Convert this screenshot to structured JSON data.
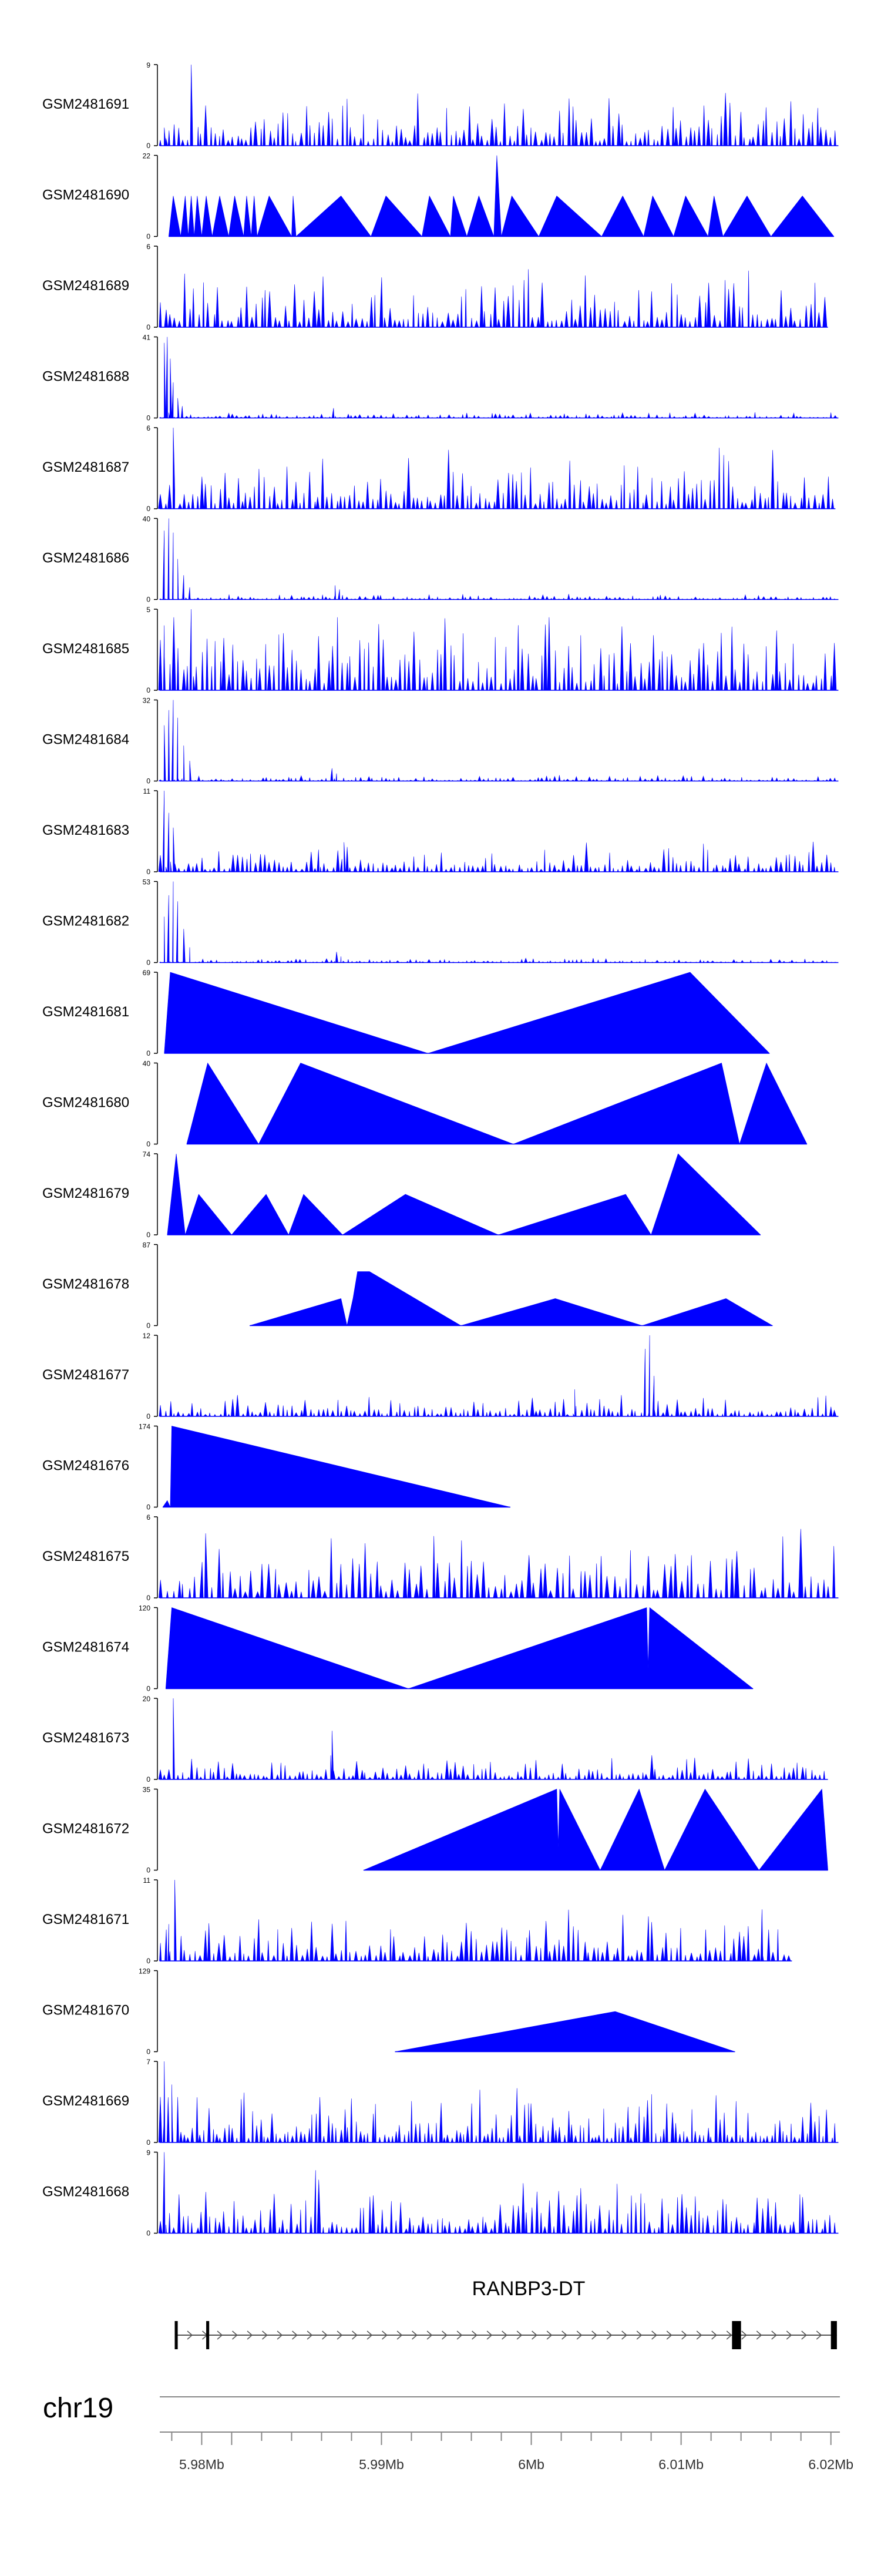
{
  "colors": {
    "track_fill": "#0000ff",
    "axis": "#000000",
    "text": "#000000"
  },
  "chart_data": {
    "type": "area",
    "xlim": [
      5975200,
      6020600
    ],
    "tracks": [
      {
        "name": "GSM2481691",
        "ymax": 9,
        "baseline": 0,
        "style": "spiky",
        "peaks": [
          [
            5975500,
            2
          ],
          [
            5977300,
            9
          ]
        ],
        "range": [
          5975200,
          6020500
        ],
        "n": 150,
        "seed": 11,
        "amp": 0.35
      },
      {
        "name": "GSM2481690",
        "ymax": 22,
        "baseline": 0,
        "style": "tri",
        "points": [
          [
            5975800,
            0
          ],
          [
            5976100,
            11
          ],
          [
            5976600,
            0
          ],
          [
            5976900,
            11
          ],
          [
            5977100,
            0
          ],
          [
            5977300,
            11
          ],
          [
            5977500,
            0
          ],
          [
            5977700,
            11
          ],
          [
            5978000,
            0
          ],
          [
            5978300,
            11
          ],
          [
            5978700,
            0
          ],
          [
            5979200,
            11
          ],
          [
            5979800,
            0
          ],
          [
            5980200,
            11
          ],
          [
            5980800,
            0
          ],
          [
            5981000,
            11
          ],
          [
            5981300,
            0
          ],
          [
            5981500,
            11
          ],
          [
            5981700,
            0
          ],
          [
            5982500,
            11
          ],
          [
            5984000,
            0
          ],
          [
            5984100,
            11
          ],
          [
            5984300,
            0
          ],
          [
            5987300,
            11
          ],
          [
            5989300,
            0
          ],
          [
            5990300,
            11
          ],
          [
            5992700,
            0
          ],
          [
            5993200,
            11
          ],
          [
            5994600,
            0
          ],
          [
            5994800,
            11
          ],
          [
            5995700,
            0
          ],
          [
            5996500,
            11
          ],
          [
            5997500,
            0
          ],
          [
            5997700,
            22
          ],
          [
            5998000,
            0
          ],
          [
            5998700,
            11
          ],
          [
            6000500,
            0
          ],
          [
            6001700,
            11
          ],
          [
            6004700,
            0
          ],
          [
            6006100,
            11
          ],
          [
            6007500,
            0
          ],
          [
            6008100,
            11
          ],
          [
            6009500,
            0
          ],
          [
            6010300,
            11
          ],
          [
            6011800,
            0
          ],
          [
            6012200,
            11
          ],
          [
            6012800,
            0
          ],
          [
            6014400,
            11
          ],
          [
            6016000,
            0
          ],
          [
            6018100,
            11
          ],
          [
            6020200,
            0
          ]
        ]
      },
      {
        "name": "GSM2481689",
        "ymax": 6,
        "baseline": 0,
        "style": "spiky",
        "peaks": [],
        "range": [
          5975200,
          6019800
        ],
        "n": 140,
        "seed": 23,
        "amp": 0.45
      },
      {
        "name": "GSM2481688",
        "ymax": 41,
        "baseline": 0,
        "style": "spiky",
        "peaks": [
          [
            5975500,
            38
          ],
          [
            5975700,
            41
          ],
          [
            5975900,
            30
          ],
          [
            5976100,
            18
          ],
          [
            5976400,
            10
          ],
          [
            5976700,
            6
          ],
          [
            5986800,
            5
          ]
        ],
        "range": [
          5975200,
          6020500
        ],
        "n": 160,
        "seed": 31,
        "amp": 0.04
      },
      {
        "name": "GSM2481687",
        "ymax": 6,
        "baseline": 0,
        "style": "spiky",
        "peaks": [
          [
            5976100,
            6
          ]
        ],
        "range": [
          5975200,
          6020300
        ],
        "n": 150,
        "seed": 41,
        "amp": 0.4
      },
      {
        "name": "GSM2481686",
        "ymax": 40,
        "baseline": 0,
        "style": "spiky",
        "peaks": [
          [
            5975500,
            34
          ],
          [
            5975800,
            40
          ],
          [
            5976100,
            33
          ],
          [
            5976400,
            20
          ],
          [
            5976800,
            12
          ],
          [
            5977200,
            6
          ],
          [
            5986900,
            7
          ],
          [
            5987200,
            5
          ]
        ],
        "range": [
          5975200,
          6020500
        ],
        "n": 160,
        "seed": 53,
        "amp": 0.04
      },
      {
        "name": "GSM2481685",
        "ymax": 5,
        "baseline": 0,
        "style": "spiky",
        "peaks": [
          [
            5975500,
            4
          ],
          [
            5977300,
            5
          ]
        ],
        "range": [
          5975200,
          6020500
        ],
        "n": 150,
        "seed": 61,
        "amp": 0.55
      },
      {
        "name": "GSM2481684",
        "ymax": 32,
        "baseline": 0,
        "style": "spiky",
        "peaks": [
          [
            5975500,
            22
          ],
          [
            5975800,
            28
          ],
          [
            5976100,
            32
          ],
          [
            5976400,
            25
          ],
          [
            5976800,
            14
          ],
          [
            5977200,
            8
          ],
          [
            5986700,
            5
          ],
          [
            5987000,
            3
          ]
        ],
        "range": [
          5975200,
          6020500
        ],
        "n": 160,
        "seed": 71,
        "amp": 0.04
      },
      {
        "name": "GSM2481683",
        "ymax": 11,
        "baseline": 0,
        "style": "spiky",
        "peaks": [
          [
            5975500,
            11
          ],
          [
            5975800,
            8
          ],
          [
            5976100,
            6
          ],
          [
            5985800,
            3
          ],
          [
            5987500,
            4
          ]
        ],
        "range": [
          5975200,
          6020500
        ],
        "n": 150,
        "seed": 83,
        "amp": 0.2
      },
      {
        "name": "GSM2481682",
        "ymax": 53,
        "baseline": 0,
        "style": "spiky",
        "peaks": [
          [
            5975500,
            30
          ],
          [
            5975800,
            44
          ],
          [
            5976100,
            53
          ],
          [
            5976400,
            40
          ],
          [
            5976800,
            22
          ],
          [
            5977200,
            10
          ],
          [
            5987000,
            7
          ],
          [
            5987300,
            4
          ]
        ],
        "range": [
          5975200,
          6020500
        ],
        "n": 160,
        "seed": 97,
        "amp": 0.03
      },
      {
        "name": "GSM2481681",
        "ymax": 69,
        "baseline": 0,
        "style": "tri",
        "points": [
          [
            5975500,
            0
          ],
          [
            5975900,
            69
          ],
          [
            5993100,
            0
          ],
          [
            6010600,
            69
          ],
          [
            6015900,
            0
          ]
        ]
      },
      {
        "name": "GSM2481680",
        "ymax": 40,
        "baseline": 0,
        "style": "tri",
        "points": [
          [
            5977000,
            0
          ],
          [
            5978400,
            40
          ],
          [
            5981800,
            0
          ],
          [
            5984600,
            40
          ],
          [
            5998800,
            0
          ],
          [
            6012700,
            40
          ],
          [
            6013900,
            0
          ],
          [
            6015700,
            40
          ],
          [
            6018400,
            0
          ]
        ]
      },
      {
        "name": "GSM2481679",
        "ymax": 74,
        "baseline": 0,
        "style": "tri",
        "points": [
          [
            5975700,
            0
          ],
          [
            5976300,
            74
          ],
          [
            5976900,
            0
          ],
          [
            5977800,
            37
          ],
          [
            5980000,
            0
          ],
          [
            5982300,
            37
          ],
          [
            5983800,
            0
          ],
          [
            5984800,
            37
          ],
          [
            5987400,
            0
          ],
          [
            5991600,
            37
          ],
          [
            5997800,
            0
          ],
          [
            6006300,
            37
          ],
          [
            6008000,
            0
          ],
          [
            6009800,
            74
          ],
          [
            6015300,
            0
          ]
        ]
      },
      {
        "name": "GSM2481678",
        "ymax": 87,
        "baseline": 0,
        "style": "tri",
        "points": [
          [
            5981200,
            0
          ],
          [
            5987300,
            29
          ],
          [
            5987700,
            0
          ],
          [
            5988100,
            29
          ],
          [
            5988400,
            58
          ],
          [
            5989200,
            58
          ],
          [
            5995300,
            0
          ],
          [
            6001600,
            29
          ],
          [
            6007400,
            0
          ],
          [
            6013000,
            29
          ],
          [
            6016100,
            0
          ]
        ]
      },
      {
        "name": "GSM2481677",
        "ymax": 12,
        "baseline": 0,
        "style": "spiky",
        "peaks": [
          [
            6007600,
            10
          ],
          [
            6007900,
            12
          ],
          [
            6008200,
            6
          ],
          [
            6002900,
            4
          ]
        ],
        "range": [
          5975200,
          6020500
        ],
        "n": 150,
        "seed": 101,
        "amp": 0.16
      },
      {
        "name": "GSM2481676",
        "ymax": 174,
        "baseline": 0,
        "style": "tri",
        "points": [
          [
            5975400,
            0
          ],
          [
            5975700,
            14
          ],
          [
            5975900,
            0
          ],
          [
            5976000,
            174
          ],
          [
            5998600,
            0
          ]
        ]
      },
      {
        "name": "GSM2481675",
        "ymax": 6,
        "baseline": 0,
        "style": "spiky",
        "peaks": [],
        "range": [
          5975200,
          6020500
        ],
        "n": 120,
        "seed": 113,
        "amp": 0.5
      },
      {
        "name": "GSM2481674",
        "ymax": 120,
        "baseline": 0,
        "style": "tri",
        "points": [
          [
            5975600,
            0
          ],
          [
            5976000,
            120
          ],
          [
            5991800,
            0
          ],
          [
            6007700,
            120
          ],
          [
            6007800,
            30
          ],
          [
            6007900,
            120
          ],
          [
            6014800,
            0
          ]
        ]
      },
      {
        "name": "GSM2481673",
        "ymax": 20,
        "baseline": 0,
        "style": "spiky",
        "peaks": [
          [
            5976100,
            20
          ],
          [
            5986700,
            12
          ]
        ],
        "range": [
          5975200,
          6019800
        ],
        "n": 150,
        "seed": 127,
        "amp": 0.18
      },
      {
        "name": "GSM2481672",
        "ymax": 35,
        "baseline": 0,
        "style": "tri",
        "points": [
          [
            5988800,
            0
          ],
          [
            6001700,
            35
          ],
          [
            6001800,
            10
          ],
          [
            6001900,
            35
          ],
          [
            6004600,
            0
          ],
          [
            6007200,
            35
          ],
          [
            6008900,
            0
          ],
          [
            6011600,
            35
          ],
          [
            6015200,
            0
          ],
          [
            6019400,
            35
          ],
          [
            6019800,
            0
          ]
        ]
      },
      {
        "name": "GSM2481671",
        "ymax": 11,
        "baseline": 0,
        "style": "spiky",
        "peaks": [
          [
            5975800,
            5
          ],
          [
            5976200,
            11
          ],
          [
            6015400,
            7
          ]
        ],
        "range": [
          5975200,
          6017400
        ],
        "n": 130,
        "seed": 131,
        "amp": 0.35
      },
      {
        "name": "GSM2481670",
        "ymax": 129,
        "baseline": 0,
        "style": "tri",
        "points": [
          [
            5990900,
            0
          ],
          [
            6005600,
            64
          ],
          [
            6013600,
            0
          ]
        ]
      },
      {
        "name": "GSM2481669",
        "ymax": 7,
        "baseline": 0,
        "style": "spiky",
        "peaks": [
          [
            5975500,
            7
          ],
          [
            5976000,
            5
          ]
        ],
        "range": [
          5975200,
          6020500
        ],
        "n": 170,
        "seed": 139,
        "amp": 0.35
      },
      {
        "name": "GSM2481668",
        "ymax": 9,
        "baseline": 0,
        "style": "spiky",
        "peaks": [
          [
            5975500,
            9
          ],
          [
            5985600,
            7
          ]
        ],
        "range": [
          5975200,
          6020500
        ],
        "n": 150,
        "seed": 149,
        "amp": 0.35
      }
    ],
    "gene": {
      "name": "RANBP3-DT",
      "start": 5976200,
      "end": 6020400,
      "strand": "+",
      "exons": [
        [
          5976200,
          5976400
        ],
        [
          5978300,
          5978500
        ],
        [
          6013400,
          6014000
        ],
        [
          6020000,
          6020400
        ]
      ]
    },
    "chromosome": "chr19",
    "xticks": [
      {
        "pos": 5978000,
        "label": "5.98Mb"
      },
      {
        "pos": 5990000,
        "label": "5.99Mb"
      },
      {
        "pos": 6000000,
        "label": "6Mb"
      },
      {
        "pos": 6010000,
        "label": "6.01Mb"
      },
      {
        "pos": 6020000,
        "label": "6.02Mb"
      }
    ]
  }
}
